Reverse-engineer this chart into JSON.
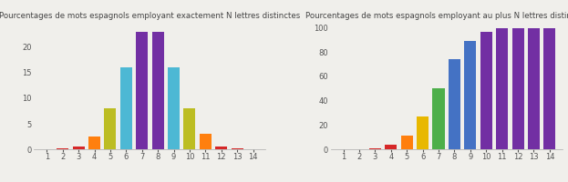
{
  "title1": "Pourcentages de mots espagnols employant exactement N lettres distinctes",
  "title2": "Pourcentages de mots espagnols employant au plus N lettres distinctes",
  "categories": [
    1,
    2,
    3,
    4,
    5,
    6,
    7,
    8,
    9,
    10,
    11,
    12,
    13,
    14
  ],
  "values1": [
    0.0,
    0.1,
    0.6,
    2.5,
    8.0,
    16.0,
    23.0,
    23.0,
    16.0,
    8.0,
    3.0,
    0.6,
    0.1,
    0.0
  ],
  "values2": [
    0.0,
    0.0,
    1.0,
    3.5,
    11.0,
    27.0,
    50.0,
    74.0,
    89.0,
    97.0,
    100.0,
    100.0,
    100.0,
    100.0
  ],
  "colors1": [
    "#d62728",
    "#d62728",
    "#d62728",
    "#ff7f0e",
    "#bcbd22",
    "#4db8d4",
    "#722fa3",
    "#722fa3",
    "#4db8d4",
    "#bcbd22",
    "#ff7f0e",
    "#d62728",
    "#d62728",
    "#d62728"
  ],
  "colors2": [
    "#d62728",
    "#d62728",
    "#d62728",
    "#d62728",
    "#ff7f0e",
    "#e8b800",
    "#4daf4a",
    "#4472c4",
    "#4472c4",
    "#722fa3",
    "#722fa3",
    "#722fa3",
    "#722fa3",
    "#722fa3"
  ],
  "bg_color": "#f0efeb",
  "ylim1": [
    0,
    25
  ],
  "ylim2": [
    0,
    105
  ],
  "yticks1": [
    0,
    5,
    10,
    15,
    20
  ],
  "yticks2": [
    0,
    20,
    40,
    60,
    80,
    100
  ],
  "title_fontsize": 6.2,
  "tick_fontsize": 6.0
}
